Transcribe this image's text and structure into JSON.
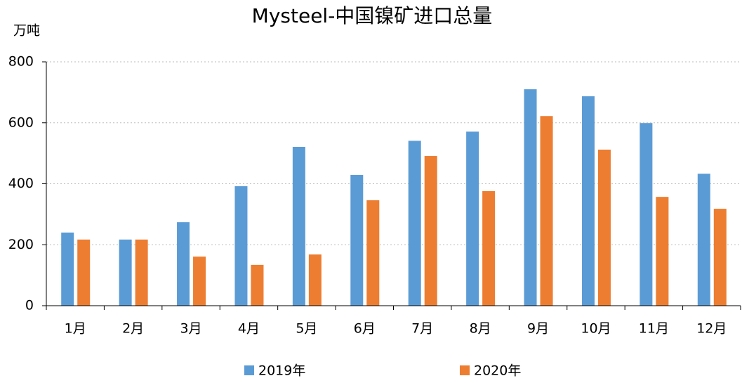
{
  "chart_data": {
    "type": "bar",
    "title": "Mysteel-中国镍矿进口总量",
    "y_label": "万吨",
    "categories": [
      "1月",
      "2月",
      "3月",
      "4月",
      "5月",
      "6月",
      "7月",
      "8月",
      "9月",
      "10月",
      "11月",
      "12月"
    ],
    "series": [
      {
        "name": "2019年",
        "color": "#5b9bd5",
        "values": [
          240,
          217,
          274,
          392,
          521,
          429,
          541,
          571,
          710,
          687,
          599,
          433
        ]
      },
      {
        "name": "2020年",
        "color": "#ed7d31",
        "values": [
          217,
          217,
          161,
          134,
          168,
          346,
          491,
          376,
          622,
          512,
          357,
          318
        ]
      }
    ],
    "ylim": [
      0,
      800
    ],
    "yticks": [
      0,
      200,
      400,
      600,
      800
    ],
    "grid": true,
    "legend": "bottom"
  }
}
